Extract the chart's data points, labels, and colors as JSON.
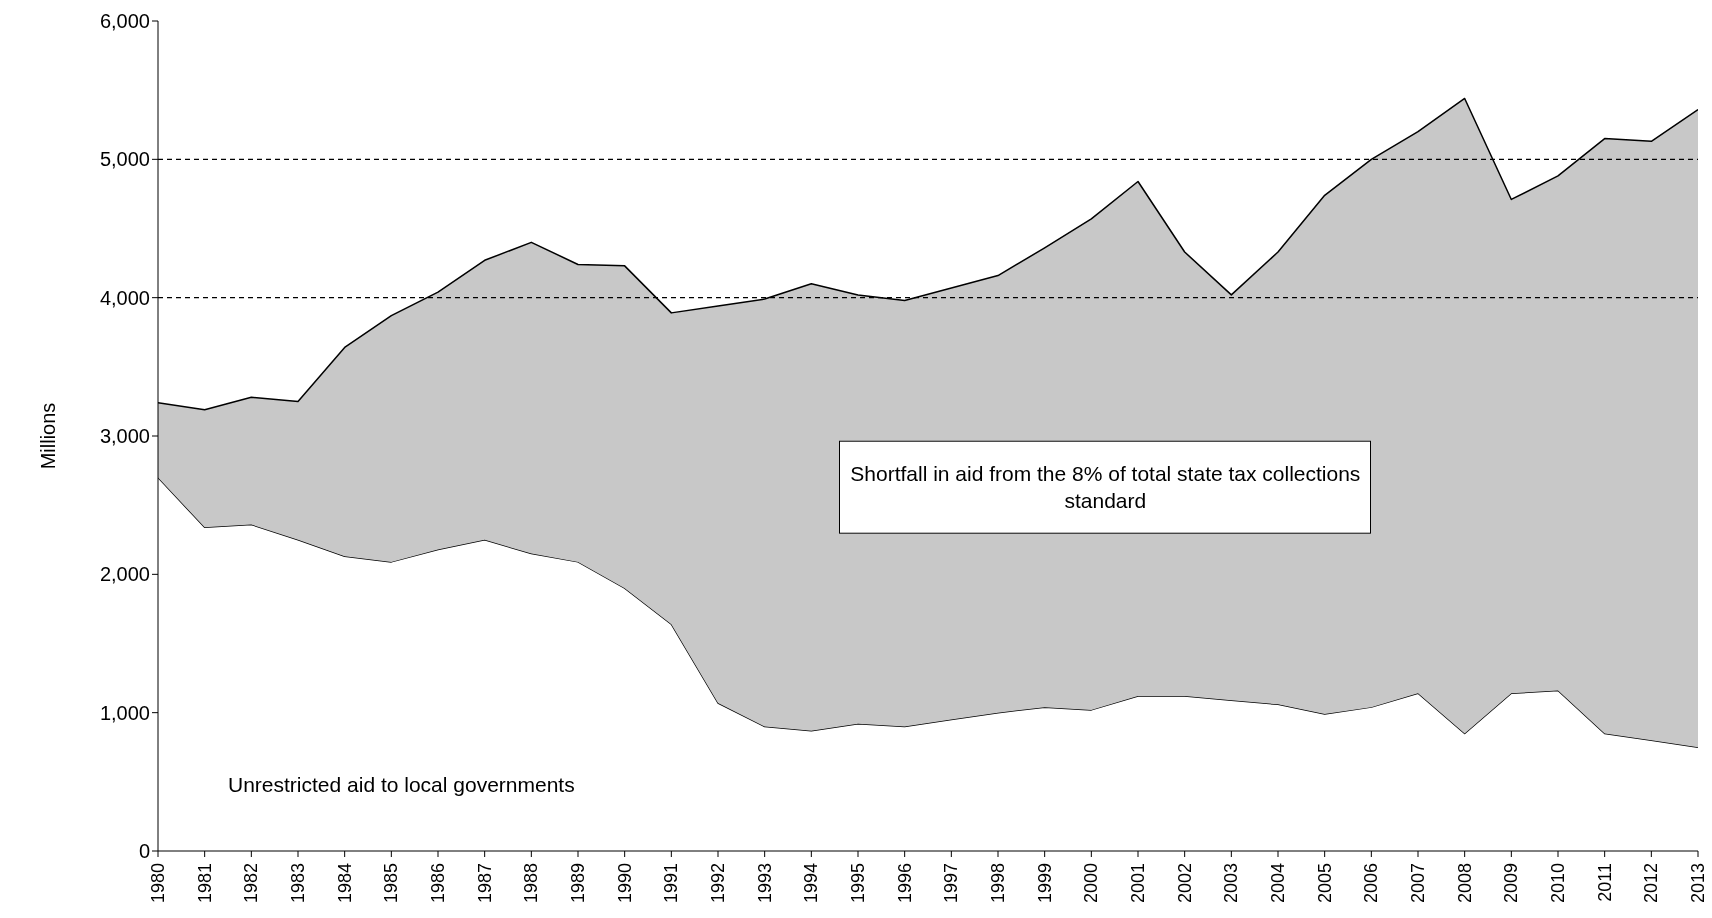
{
  "chart_data": {
    "type": "area",
    "stacked": true,
    "ylabel": "Millions",
    "categories": [
      "1980",
      "1981",
      "1982",
      "1983",
      "1984",
      "1985",
      "1986",
      "1987",
      "1988",
      "1989",
      "1990",
      "1991",
      "1992",
      "1993",
      "1994",
      "1995",
      "1996",
      "1997",
      "1998",
      "1999",
      "2000",
      "2001",
      "2002",
      "2003",
      "2004",
      "2005",
      "2006",
      "2007",
      "2008",
      "2009",
      "2010",
      "2011",
      "2012",
      "2013"
    ],
    "series": [
      {
        "name": "Unrestricted aid to local governments",
        "color": "#ffffff",
        "values": [
          2700,
          2340,
          2360,
          2250,
          2130,
          2090,
          2180,
          2250,
          2150,
          2090,
          1900,
          1640,
          1070,
          900,
          870,
          920,
          900,
          950,
          1000,
          1040,
          1020,
          1120,
          1120,
          1090,
          1060,
          990,
          1040,
          1140,
          850,
          1140,
          1160,
          850,
          800,
          750
        ]
      },
      {
        "name": "Shortfall in aid from the 8% of total state tax collections standard",
        "color": "#c8c8c8",
        "values": [
          540,
          850,
          920,
          1000,
          1510,
          1780,
          1860,
          2020,
          2250,
          2150,
          2330,
          2250,
          2870,
          3090,
          3230,
          3100,
          3080,
          3120,
          3160,
          3320,
          3550,
          3720,
          3210,
          2930,
          3270,
          3750,
          3960,
          4060,
          4590,
          3570,
          3720,
          4300,
          4330,
          4610
        ]
      }
    ],
    "ylim": [
      0,
      6000
    ],
    "yticks": [
      {
        "value": 0,
        "label": "0"
      },
      {
        "value": 1000,
        "label": "1,000"
      },
      {
        "value": 2000,
        "label": "2,000"
      },
      {
        "value": 3000,
        "label": "3,000"
      },
      {
        "value": 4000,
        "label": "4,000"
      },
      {
        "value": 5000,
        "label": "5,000"
      },
      {
        "value": 6000,
        "label": "6,000"
      }
    ],
    "ref_lines": [
      {
        "axis": "y",
        "value": 4000,
        "line_style": "dashed",
        "color": "#000000"
      },
      {
        "axis": "y",
        "value": 5000,
        "line_style": "dashed",
        "color": "#000000"
      }
    ]
  }
}
